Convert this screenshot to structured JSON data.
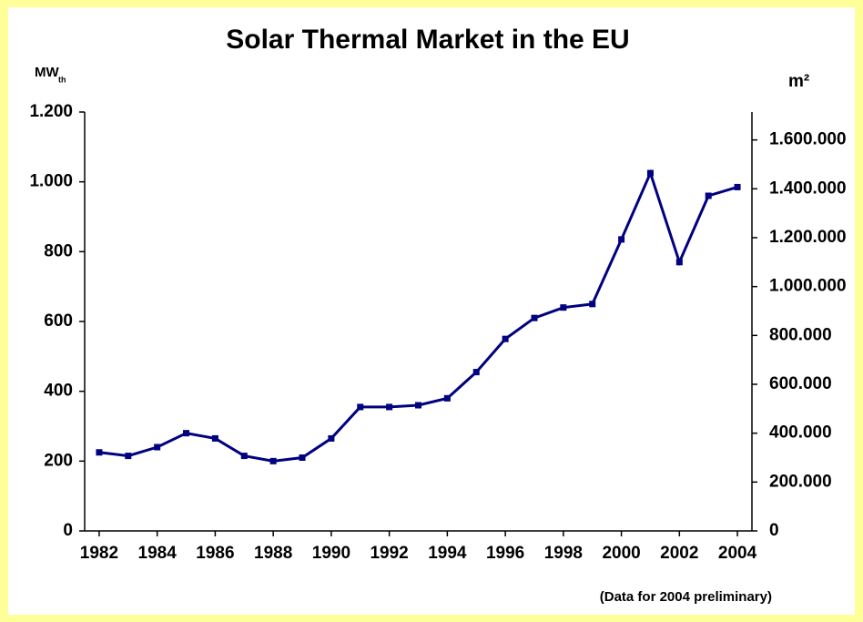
{
  "chart_data": {
    "type": "line",
    "title": "Solar Thermal Market in the EU",
    "ylabel": "MW",
    "ylabel_sub": "th",
    "y2label": "m²",
    "note": "(Data for 2004 preliminary)",
    "x": [
      1982,
      1983,
      1984,
      1985,
      1986,
      1987,
      1988,
      1989,
      1990,
      1991,
      1992,
      1993,
      1994,
      1995,
      1996,
      1997,
      1998,
      1999,
      2000,
      2001,
      2002,
      2003,
      2004
    ],
    "series": [
      {
        "color": "#000080",
        "values": [
          225,
          215,
          240,
          280,
          265,
          215,
          200,
          210,
          265,
          355,
          355,
          360,
          380,
          455,
          550,
          610,
          640,
          650,
          835,
          1025,
          770,
          960,
          985
        ]
      }
    ],
    "xlim": [
      1981.5,
      2004.5
    ],
    "xticks": [
      1982,
      1984,
      1986,
      1988,
      1990,
      1992,
      1994,
      1996,
      1998,
      2000,
      2002,
      2004
    ],
    "ylim": [
      0,
      1200
    ],
    "yticks": [
      0,
      200,
      400,
      600,
      800,
      {
        "value": 1000,
        "label": "1.000"
      },
      {
        "value": 1200,
        "label": "1.200"
      }
    ],
    "y2lim": [
      0,
      1714286
    ],
    "y2ticks": [
      0,
      {
        "value": 200000,
        "label": "200.000"
      },
      {
        "value": 400000,
        "label": "400.000"
      },
      {
        "value": 600000,
        "label": "600.000"
      },
      {
        "value": 800000,
        "label": "800.000"
      },
      {
        "value": 1000000,
        "label": "1.000.000"
      },
      {
        "value": 1200000,
        "label": "1.200.000"
      },
      {
        "value": 1400000,
        "label": "1.400.000"
      },
      {
        "value": 1600000,
        "label": "1.600.000"
      }
    ]
  }
}
